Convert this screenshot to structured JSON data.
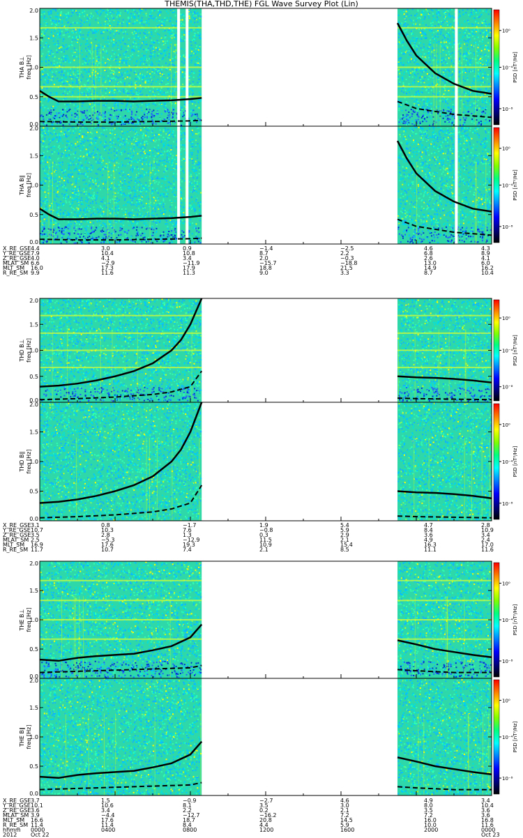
{
  "title": "THEMIS(THA,THD,THE) FGL Wave Survey Plot (Lin)",
  "colors": {
    "background_mid": "#2fd8a8",
    "speckle": [
      "#00c8ff",
      "#00e0e0",
      "#10b0ff",
      "#30ffb0",
      "#80ff60",
      "#c0ff20",
      "#ffff00",
      "#2060ff",
      "#0030d0"
    ],
    "harmonic_line": "#d8ff30",
    "curve": "#000000",
    "gap": "#ffffff"
  },
  "colorbar": {
    "label": "PSD [nT²/Hz]",
    "ticks": [
      "10⁰",
      "10⁻⁴",
      "10⁻⁸"
    ],
    "colors": [
      "#ff0000",
      "#ff8000",
      "#ffff00",
      "#80ff00",
      "#00ff80",
      "#00ffff",
      "#0080ff",
      "#0000ff",
      "#000080",
      "#000000"
    ]
  },
  "chart_data": [
    {
      "type": "heatmap",
      "probe": "THA",
      "component": "B⊥",
      "ylabel": "THA B⊥",
      "yunit": "freq [Hz]",
      "ylim": [
        0,
        2
      ],
      "yticks": [
        "0.0",
        "0.5",
        "1.0",
        "1.5",
        "2.0"
      ],
      "data_segments": [
        [
          0,
          8.6
        ],
        [
          19.0,
          24.0
        ]
      ],
      "gaps": [
        [
          7.3,
          7.45
        ],
        [
          7.75,
          7.9
        ],
        [
          22.05,
          22.2
        ]
      ],
      "solid_curve": {
        "x": [
          0,
          0.5,
          1,
          2,
          3,
          4,
          5,
          6,
          7,
          8,
          8.6,
          19.0,
          19.5,
          20,
          21,
          22,
          23,
          24
        ],
        "y": [
          0.6,
          0.5,
          0.42,
          0.42,
          0.43,
          0.43,
          0.42,
          0.43,
          0.44,
          0.46,
          0.48,
          1.75,
          1.45,
          1.2,
          0.9,
          0.72,
          0.6,
          0.55
        ]
      },
      "dashed_curve": {
        "x": [
          0,
          2,
          4,
          6,
          8,
          8.6,
          19.0,
          20,
          22,
          24
        ],
        "y": [
          0.08,
          0.07,
          0.07,
          0.08,
          0.09,
          0.1,
          0.42,
          0.3,
          0.2,
          0.15
        ]
      },
      "harmonic_lines": [
        1.67,
        1.0,
        0.67,
        0.5
      ],
      "low_band": true
    },
    {
      "type": "heatmap",
      "probe": "THA",
      "component": "B∥",
      "ylabel": "THA B∥",
      "yunit": "freq [Hz]",
      "ylim": [
        0,
        2
      ],
      "yticks": [
        "0.0",
        "0.5",
        "1.0",
        "1.5",
        "2.0"
      ],
      "data_segments": [
        [
          0,
          8.6
        ],
        [
          19.0,
          24.0
        ]
      ],
      "gaps": [
        [
          7.3,
          7.45
        ],
        [
          7.75,
          7.9
        ],
        [
          22.05,
          22.2
        ]
      ],
      "solid_curve": {
        "x": [
          0,
          0.5,
          1,
          2,
          3,
          4,
          5,
          6,
          7,
          8,
          8.6,
          19.0,
          19.5,
          20,
          21,
          22,
          23,
          24
        ],
        "y": [
          0.6,
          0.5,
          0.42,
          0.42,
          0.43,
          0.43,
          0.42,
          0.43,
          0.44,
          0.46,
          0.48,
          1.75,
          1.45,
          1.2,
          0.9,
          0.72,
          0.6,
          0.55
        ]
      },
      "dashed_curve": {
        "x": [
          0,
          2,
          4,
          6,
          8,
          8.6,
          19.0,
          20,
          22,
          24
        ],
        "y": [
          0.08,
          0.07,
          0.07,
          0.08,
          0.09,
          0.1,
          0.42,
          0.3,
          0.2,
          0.15
        ]
      },
      "harmonic_lines": [],
      "low_band": true
    },
    {
      "type": "heatmap",
      "probe": "THD",
      "component": "B⊥",
      "ylabel": "THD B⊥",
      "yunit": "freq [Hz]",
      "ylim": [
        0,
        2
      ],
      "yticks": [
        "0.0",
        "0.5",
        "1.0",
        "1.5",
        "2.0"
      ],
      "data_segments": [
        [
          0,
          8.6
        ],
        [
          19.0,
          24.0
        ]
      ],
      "gaps": [],
      "solid_curve": {
        "x": [
          0,
          1,
          2,
          3,
          4,
          5,
          6,
          7,
          7.5,
          8,
          8.3,
          8.6,
          19.0,
          20,
          21,
          22,
          23,
          24
        ],
        "y": [
          0.3,
          0.32,
          0.36,
          0.42,
          0.5,
          0.6,
          0.75,
          1.0,
          1.2,
          1.5,
          1.75,
          2.0,
          0.5,
          0.48,
          0.47,
          0.45,
          0.42,
          0.38
        ]
      },
      "dashed_curve": {
        "x": [
          0,
          2,
          4,
          6,
          7,
          8,
          8.6,
          19.0,
          20,
          22,
          24
        ],
        "y": [
          0.05,
          0.07,
          0.1,
          0.15,
          0.2,
          0.3,
          0.6,
          0.08,
          0.07,
          0.06,
          0.05
        ]
      },
      "harmonic_lines": [
        1.67,
        1.33,
        1.0,
        0.67
      ],
      "low_band": true
    },
    {
      "type": "heatmap",
      "probe": "THD",
      "component": "B∥",
      "ylabel": "THD B∥",
      "yunit": "freq [Hz]",
      "ylim": [
        0,
        2
      ],
      "yticks": [
        "0.0",
        "0.5",
        "1.0",
        "1.5",
        "2.0"
      ],
      "data_segments": [
        [
          0,
          8.6
        ],
        [
          19.0,
          24.0
        ]
      ],
      "gaps": [],
      "solid_curve": {
        "x": [
          0,
          1,
          2,
          3,
          4,
          5,
          6,
          7,
          7.5,
          8,
          8.3,
          8.6,
          19.0,
          20,
          21,
          22,
          23,
          24
        ],
        "y": [
          0.3,
          0.32,
          0.36,
          0.42,
          0.5,
          0.6,
          0.75,
          1.0,
          1.2,
          1.5,
          1.75,
          2.0,
          0.5,
          0.48,
          0.47,
          0.45,
          0.42,
          0.38
        ]
      },
      "dashed_curve": {
        "x": [
          0,
          2,
          4,
          6,
          7,
          8,
          8.6,
          19.0,
          20,
          22,
          24
        ],
        "y": [
          0.05,
          0.07,
          0.1,
          0.15,
          0.2,
          0.3,
          0.6,
          0.08,
          0.07,
          0.06,
          0.05
        ]
      },
      "harmonic_lines": [],
      "low_band": false
    },
    {
      "type": "heatmap",
      "probe": "THE",
      "component": "B⊥",
      "ylabel": "THE B⊥",
      "yunit": "freq [Hz]",
      "ylim": [
        0,
        2
      ],
      "yticks": [
        "0.0",
        "0.5",
        "1.0",
        "1.5",
        "2.0"
      ],
      "data_segments": [
        [
          0,
          8.6
        ],
        [
          19.0,
          24.0
        ]
      ],
      "gaps": [],
      "solid_curve": {
        "x": [
          0,
          1,
          2,
          3,
          4,
          5,
          6,
          7,
          8,
          8.6,
          19.0,
          20,
          21,
          22,
          23,
          24
        ],
        "y": [
          0.32,
          0.3,
          0.35,
          0.38,
          0.4,
          0.42,
          0.48,
          0.55,
          0.7,
          0.92,
          0.65,
          0.58,
          0.5,
          0.45,
          0.4,
          0.36
        ]
      },
      "dashed_curve": {
        "x": [
          0,
          2,
          4,
          6,
          8,
          8.6,
          19.0,
          20,
          22,
          24
        ],
        "y": [
          0.1,
          0.12,
          0.14,
          0.16,
          0.18,
          0.22,
          0.15,
          0.13,
          0.1,
          0.1
        ]
      },
      "harmonic_lines": [
        1.67,
        1.33,
        1.0,
        0.67
      ],
      "low_band": true
    },
    {
      "type": "heatmap",
      "probe": "THE",
      "component": "B∥",
      "ylabel": "THE B∥",
      "yunit": "freq [Hz]",
      "ylim": [
        0,
        2
      ],
      "yticks": [
        "0.0",
        "0.5",
        "1.0",
        "1.5",
        "2.0"
      ],
      "data_segments": [
        [
          0,
          8.6
        ],
        [
          19.0,
          24.0
        ]
      ],
      "gaps": [],
      "solid_curve": {
        "x": [
          0,
          1,
          2,
          3,
          4,
          5,
          6,
          7,
          8,
          8.6,
          19.0,
          20,
          21,
          22,
          23,
          24
        ],
        "y": [
          0.32,
          0.3,
          0.35,
          0.38,
          0.4,
          0.42,
          0.48,
          0.55,
          0.7,
          0.92,
          0.65,
          0.58,
          0.5,
          0.45,
          0.4,
          0.36
        ]
      },
      "dashed_curve": {
        "x": [
          0,
          2,
          4,
          6,
          8,
          8.6,
          19.0,
          20,
          22,
          24
        ],
        "y": [
          0.1,
          0.12,
          0.14,
          0.16,
          0.18,
          0.22,
          0.15,
          0.13,
          0.1,
          0.1
        ]
      },
      "harmonic_lines": [],
      "low_band": false
    }
  ],
  "ephemeris": [
    {
      "rows": [
        {
          "label": "X_RE_GSE",
          "values": [
            "4.4",
            "3.0",
            "0.9",
            "−1.4",
            "−2.5",
            "4.6",
            "4.3"
          ]
        },
        {
          "label": "Y_RE_GSE",
          "values": [
            "7.9",
            "10.4",
            "10.8",
            "8.7",
            "2.2",
            "6.8",
            "8.9"
          ]
        },
        {
          "label": "Z_RE_GSE",
          "values": [
            "4.0",
            "4.1",
            "3.4",
            "2.0",
            "−0.3",
            "2.6",
            "4.1"
          ]
        },
        {
          "label": "MLAT_SM",
          "values": [
            "6.6",
            "−2.9",
            "−11.9",
            "−15.7",
            "−18.8",
            "13.0",
            "6.0"
          ]
        },
        {
          "label": "MLT_SM",
          "values": [
            "16.0",
            "17.3",
            "17.9",
            "18.8",
            "21.5",
            "14.9",
            "16.2"
          ]
        },
        {
          "label": "R_RE_SM",
          "values": [
            "9.9",
            "11.6",
            "11.3",
            "9.0",
            "3.3",
            "8.7",
            "10.4"
          ]
        }
      ]
    },
    {
      "rows": [
        {
          "label": "X_RE_GSE",
          "values": [
            "3.1",
            "0.8",
            "−1.7",
            "1.9",
            "5.4",
            "4.7",
            "2.8"
          ]
        },
        {
          "label": "Y_RE_GSE",
          "values": [
            "10.7",
            "10.3",
            "7.6",
            "−0.8",
            "5.9",
            "8.4",
            "10.9"
          ]
        },
        {
          "label": "Z_RE_GSE",
          "values": [
            "3.5",
            "2.8",
            "1.3",
            "0.3",
            "2.9",
            "3.6",
            "3.4"
          ]
        },
        {
          "label": "MLAT_SM",
          "values": [
            "2.5",
            "−5.3",
            "−12.9",
            "11.5",
            "2.1",
            "4.9",
            "2.4"
          ]
        },
        {
          "label": "MLT_SM",
          "values": [
            "16.9",
            "17.6",
            "19.3",
            "10.9",
            "15.4",
            "16.3",
            "17.0"
          ]
        },
        {
          "label": "R_RE_SM",
          "values": [
            "11.7",
            "10.7",
            "7.4",
            "2.1",
            "8.5",
            "11.1",
            "11.6"
          ]
        }
      ]
    },
    {
      "rows": [
        {
          "label": "X_RE_GSE",
          "values": [
            "3.7",
            "1.5",
            "−0.9",
            "−2.7",
            "4.6",
            "4.9",
            "3.4"
          ]
        },
        {
          "label": "Y_RE_GSE",
          "values": [
            "10.1",
            "10.6",
            "8.1",
            "3.5",
            "3.0",
            "8.0",
            "10.4"
          ]
        },
        {
          "label": "Z_RE_GSE",
          "values": [
            "3.6",
            "3.4",
            "2.2",
            "0.2",
            "2.1",
            "3.5",
            "3.6"
          ]
        },
        {
          "label": "MLAT_SM",
          "values": [
            "3.9",
            "−4.4",
            "−12.7",
            "−16.2",
            "7.2",
            "7.2",
            "3.6"
          ]
        },
        {
          "label": "MLT_SM",
          "values": [
            "16.6",
            "17.6",
            "18.7",
            "20.8",
            "14.5",
            "16.0",
            "16.8"
          ]
        },
        {
          "label": "R_RE_SM",
          "values": [
            "11.4",
            "11.4",
            "8.4",
            "4.4",
            "5.9",
            "10.0",
            "11.6"
          ]
        },
        {
          "label": "hhmm",
          "values": [
            "0000",
            "0400",
            "0800",
            "1200",
            "1600",
            "2000",
            "0000"
          ]
        },
        {
          "label": "2012",
          "values": [
            "Oct 22",
            "",
            "",
            "",
            "",
            "",
            "Oct 23"
          ]
        }
      ]
    }
  ]
}
